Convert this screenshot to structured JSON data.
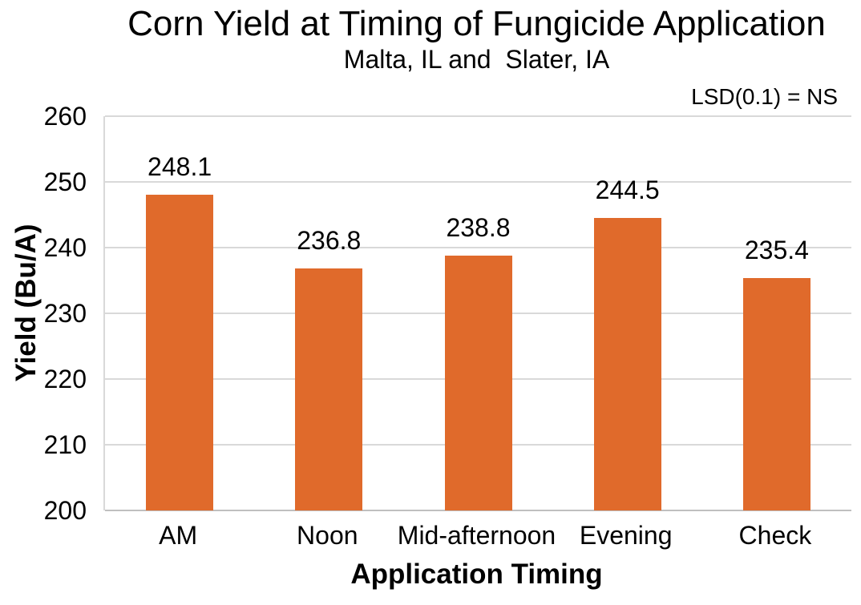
{
  "chart_data": {
    "type": "bar",
    "title": "Corn Yield at Timing of Fungicide Application",
    "subtitle": "Malta, IL and  Slater, IA",
    "annotation": "LSD(0.1) = NS",
    "categories": [
      "AM",
      "Noon",
      "Mid-afternoon",
      "Evening",
      "Check"
    ],
    "values": [
      248.1,
      236.8,
      238.8,
      244.5,
      235.4
    ],
    "xlabel": "Application Timing",
    "ylabel": "Yield (Bu/A)",
    "ylim": [
      200,
      260
    ],
    "ytick_step": 10,
    "yticks": [
      200,
      210,
      220,
      230,
      240,
      250,
      260
    ],
    "grid": true,
    "legend": "none",
    "bar_color": "#E06A2B",
    "gridline_color": "#D9D9D9",
    "axis_line_color": "#BFBFBF",
    "text_color": "#000000",
    "background_color": "#FFFFFF"
  }
}
